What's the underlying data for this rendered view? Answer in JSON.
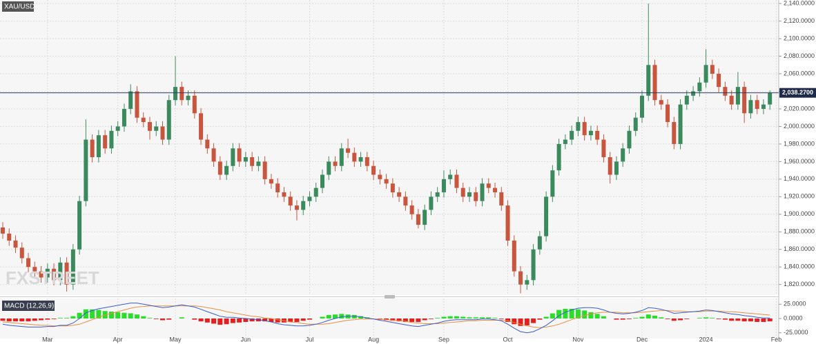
{
  "chart_data": [
    {
      "type": "candlestick",
      "title": "XAU/USD",
      "watermark": "FXSTREET",
      "up_color": "#3b8a5e",
      "down_color": "#c8553d",
      "categories": [
        null,
        null,
        null,
        null,
        null,
        null,
        null,
        "Mar",
        null,
        null,
        null,
        null,
        null,
        null,
        null,
        null,
        null,
        null,
        "Apr",
        null,
        null,
        null,
        null,
        null,
        null,
        null,
        null,
        "May",
        null,
        null,
        null,
        null,
        null,
        null,
        null,
        null,
        null,
        null,
        "Jun",
        null,
        null,
        null,
        null,
        null,
        null,
        null,
        null,
        null,
        "Jul",
        null,
        null,
        null,
        null,
        null,
        null,
        null,
        null,
        null,
        "Aug",
        null,
        null,
        null,
        null,
        null,
        null,
        null,
        null,
        null,
        null,
        "Sep",
        null,
        null,
        null,
        null,
        null,
        null,
        null,
        null,
        null,
        "Oct",
        null,
        null,
        null,
        null,
        null,
        null,
        null,
        null,
        null,
        null,
        "Nov",
        null,
        null,
        null,
        null,
        null,
        null,
        null,
        null,
        null,
        "Dec",
        null,
        null,
        null,
        null,
        null,
        null,
        null,
        null,
        null,
        "2024",
        null,
        null,
        null,
        null,
        null,
        null,
        null,
        null,
        null,
        null,
        "Feb"
      ],
      "open": [
        1885,
        1878,
        1870,
        1862,
        1850,
        1840,
        1835,
        1828,
        1838,
        1825,
        1845,
        1820,
        1860,
        1915,
        1985,
        1965,
        1990,
        1975,
        1995,
        2000,
        2020,
        2040,
        2010,
        2005,
        1995,
        2000,
        1985,
        2030,
        2045,
        2030,
        2035,
        2015,
        1985,
        1975,
        1960,
        1945,
        1955,
        1975,
        1960,
        1965,
        1955,
        1960,
        1940,
        1935,
        1925,
        1920,
        1910,
        1905,
        1915,
        1920,
        1930,
        1945,
        1960,
        1955,
        1975,
        1970,
        1960,
        1965,
        1955,
        1945,
        1940,
        1935,
        1925,
        1920,
        1910,
        1900,
        1888,
        1905,
        1920,
        1925,
        1940,
        1945,
        1930,
        1920,
        1925,
        1915,
        1935,
        1930,
        1925,
        1910,
        1870,
        1835,
        1820,
        1825,
        1860,
        1875,
        1920,
        1950,
        1980,
        1985,
        1995,
        2005,
        1990,
        1995,
        1985,
        1965,
        1945,
        1960,
        1975,
        1995,
        2010,
        2035,
        2070,
        2030,
        2025,
        2005,
        1980,
        2025,
        2035,
        2040,
        2050,
        2070,
        2060,
        2045,
        2035,
        2025,
        2045,
        2015,
        2030,
        2020,
        2025,
        null
      ],
      "high": [
        1891,
        1884,
        1876,
        1868,
        1856,
        1846,
        1841,
        1844,
        1844,
        1851,
        1851,
        1866,
        1921,
        2008,
        1991,
        1996,
        1996,
        2001,
        2006,
        2026,
        2048,
        2046,
        2016,
        2011,
        2006,
        2006,
        2036,
        2080,
        2051,
        2041,
        2041,
        2021,
        1991,
        1981,
        1966,
        1961,
        1981,
        1981,
        1971,
        1971,
        1966,
        1966,
        1946,
        1941,
        1931,
        1926,
        1916,
        1921,
        1926,
        1936,
        1951,
        1966,
        1966,
        1981,
        1986,
        1976,
        1971,
        1971,
        1961,
        1951,
        1946,
        1941,
        1931,
        1926,
        1916,
        1906,
        1911,
        1926,
        1931,
        1950,
        1951,
        1951,
        1936,
        1931,
        1931,
        1941,
        1941,
        1936,
        1931,
        1916,
        1876,
        1841,
        1831,
        1866,
        1881,
        1926,
        1956,
        1986,
        1991,
        2001,
        2011,
        2011,
        2001,
        2001,
        1991,
        1971,
        1966,
        1981,
        2001,
        2016,
        2041,
        2140,
        2076,
        2036,
        2031,
        2011,
        2031,
        2041,
        2046,
        2056,
        2088,
        2076,
        2066,
        2051,
        2041,
        2062,
        2051,
        2036,
        2036,
        2031,
        2041,
        null
      ],
      "low": [
        1872,
        1864,
        1856,
        1844,
        1834,
        1829,
        1822,
        1822,
        1819,
        1819,
        1812,
        1814,
        1854,
        1909,
        1959,
        1959,
        1969,
        1969,
        1989,
        1994,
        2014,
        2004,
        1999,
        1985,
        1989,
        1979,
        1979,
        2024,
        2024,
        2024,
        2009,
        1979,
        1969,
        1954,
        1939,
        1939,
        1949,
        1954,
        1954,
        1949,
        1949,
        1934,
        1929,
        1919,
        1914,
        1904,
        1893,
        1899,
        1909,
        1914,
        1924,
        1939,
        1949,
        1949,
        1964,
        1954,
        1954,
        1949,
        1939,
        1934,
        1929,
        1919,
        1914,
        1904,
        1894,
        1884,
        1882,
        1899,
        1914,
        1919,
        1934,
        1924,
        1914,
        1914,
        1909,
        1909,
        1924,
        1919,
        1904,
        1864,
        1829,
        1810,
        1814,
        1819,
        1854,
        1869,
        1914,
        1944,
        1974,
        1979,
        1989,
        1984,
        1984,
        1979,
        1959,
        1935,
        1939,
        1954,
        1969,
        1989,
        2004,
        2029,
        2024,
        2019,
        1999,
        1974,
        1974,
        2019,
        2029,
        2034,
        2044,
        2054,
        2039,
        2029,
        2019,
        2019,
        2004,
        2009,
        2014,
        2014,
        2019,
        null
      ],
      "close": [
        1878,
        1870,
        1862,
        1850,
        1840,
        1835,
        1828,
        1838,
        1825,
        1845,
        1820,
        1860,
        1915,
        1985,
        1965,
        1990,
        1975,
        1995,
        2000,
        2020,
        2040,
        2010,
        2005,
        1995,
        2000,
        1985,
        2030,
        2045,
        2030,
        2035,
        2015,
        1985,
        1975,
        1960,
        1945,
        1955,
        1975,
        1960,
        1965,
        1955,
        1960,
        1940,
        1935,
        1925,
        1920,
        1910,
        1905,
        1915,
        1920,
        1930,
        1945,
        1960,
        1955,
        1975,
        1970,
        1960,
        1965,
        1955,
        1945,
        1940,
        1935,
        1925,
        1920,
        1910,
        1900,
        1888,
        1905,
        1920,
        1925,
        1940,
        1945,
        1930,
        1920,
        1925,
        1915,
        1935,
        1930,
        1925,
        1910,
        1870,
        1835,
        1820,
        1825,
        1860,
        1875,
        1920,
        1950,
        1980,
        1985,
        1995,
        2005,
        1990,
        1995,
        1985,
        1965,
        1945,
        1960,
        1975,
        1995,
        2010,
        2035,
        2070,
        2030,
        2025,
        2005,
        1980,
        2025,
        2035,
        2040,
        2050,
        2070,
        2060,
        2045,
        2035,
        2025,
        2045,
        2015,
        2030,
        2020,
        2025,
        2038.27,
        null
      ],
      "last_price": {
        "value": 2038.27,
        "label": "2,038.2700"
      },
      "ylim": [
        1808,
        2144
      ],
      "yticks": [
        {
          "value": 1820,
          "label": "1,820.0000"
        },
        {
          "value": 1840,
          "label": "1,840.0000"
        },
        {
          "value": 1860,
          "label": "1,860.0000"
        },
        {
          "value": 1880,
          "label": "1,880.0000"
        },
        {
          "value": 1900,
          "label": "1,900.0000"
        },
        {
          "value": 1920,
          "label": "1,920.0000"
        },
        {
          "value": 1940,
          "label": "1,940.0000"
        },
        {
          "value": 1960,
          "label": "1,960.0000"
        },
        {
          "value": 1980,
          "label": "1,980.0000"
        },
        {
          "value": 2000,
          "label": "2,000.0000"
        },
        {
          "value": 2020,
          "label": "2,020.0000"
        },
        {
          "value": 2040,
          "label": "2,040.0000"
        },
        {
          "value": 2060,
          "label": "2,060.0000"
        },
        {
          "value": 2080,
          "label": "2,080.0000"
        },
        {
          "value": 2100,
          "label": "2,100.0000"
        },
        {
          "value": 2120,
          "label": "2,120.0000"
        },
        {
          "value": 2140,
          "label": "2,140.0000"
        }
      ],
      "grid": true
    },
    {
      "type": "macd",
      "title": "MACD (12,26,9)",
      "macd_color": "#3a5bd0",
      "signal_color": "#e8903c",
      "up_color": "#2bdc2b",
      "down_color": "#e41f1f",
      "macd": [
        -10,
        -12,
        -13,
        -14,
        -15,
        -15,
        -15,
        -14,
        -14,
        -12,
        -12,
        -8,
        0,
        10,
        14,
        17,
        19,
        21,
        23,
        25,
        27,
        27,
        25,
        23,
        21,
        19,
        20,
        22,
        24,
        22,
        20,
        16,
        12,
        8,
        4,
        2,
        2,
        1,
        0,
        -1,
        -2,
        -4,
        -6,
        -9,
        -11,
        -12,
        -13,
        -13,
        -12,
        -10,
        -7,
        -3,
        0,
        3,
        4,
        4,
        3,
        1,
        -1,
        -3,
        -5,
        -7,
        -9,
        -11,
        -13,
        -14,
        -12,
        -10,
        -8,
        -5,
        -3,
        -2,
        -2,
        -2,
        -2,
        -1,
        -1,
        -2,
        -4,
        -10,
        -17,
        -23,
        -25,
        -23,
        -18,
        -12,
        -4,
        5,
        11,
        15,
        18,
        19,
        19,
        18,
        15,
        11,
        9,
        8,
        9,
        11,
        14,
        19,
        18,
        16,
        13,
        9,
        10,
        11,
        12,
        13,
        15,
        14,
        12,
        10,
        8,
        7,
        5,
        4,
        2,
        1,
        1,
        null
      ],
      "signal": [
        -6,
        -7,
        -8,
        -9,
        -10,
        -11,
        -12,
        -12,
        -13,
        -13,
        -13,
        -12,
        -10,
        -6,
        -2,
        2,
        6,
        9,
        12,
        15,
        18,
        20,
        21,
        22,
        22,
        22,
        22,
        22,
        22,
        22,
        22,
        21,
        19,
        17,
        15,
        12,
        10,
        8,
        6,
        4,
        3,
        1,
        0,
        -2,
        -4,
        -6,
        -7,
        -9,
        -10,
        -10,
        -10,
        -9,
        -7,
        -5,
        -3,
        -2,
        -1,
        -1,
        -1,
        -1,
        -2,
        -3,
        -4,
        -5,
        -7,
        -8,
        -9,
        -9,
        -9,
        -8,
        -7,
        -6,
        -5,
        -4,
        -4,
        -3,
        -3,
        -3,
        -3,
        -4,
        -7,
        -10,
        -13,
        -15,
        -16,
        -15,
        -13,
        -10,
        -6,
        -2,
        2,
        5,
        8,
        10,
        11,
        11,
        11,
        10,
        10,
        10,
        11,
        12,
        13,
        14,
        14,
        13,
        13,
        12,
        12,
        12,
        13,
        13,
        13,
        12,
        12,
        11,
        10,
        9,
        8,
        7,
        6,
        null
      ],
      "histogram": [
        -4,
        -5,
        -5,
        -5,
        -5,
        -4,
        -3,
        -2,
        -1,
        1,
        1,
        4,
        10,
        16,
        16,
        15,
        13,
        12,
        11,
        10,
        9,
        7,
        4,
        1,
        -1,
        -3,
        -2,
        0,
        2,
        0,
        -2,
        -5,
        -7,
        -9,
        -11,
        -10,
        -8,
        -7,
        -6,
        -5,
        -5,
        -5,
        -6,
        -7,
        -7,
        -6,
        -6,
        -4,
        -2,
        0,
        3,
        6,
        7,
        8,
        7,
        6,
        4,
        2,
        0,
        -2,
        -3,
        -4,
        -5,
        -6,
        -6,
        -6,
        -3,
        -1,
        1,
        3,
        4,
        4,
        3,
        2,
        2,
        2,
        2,
        1,
        -1,
        -6,
        -10,
        -13,
        -12,
        -8,
        -2,
        3,
        9,
        15,
        17,
        17,
        16,
        14,
        11,
        8,
        4,
        0,
        -2,
        -2,
        -1,
        1,
        3,
        7,
        5,
        2,
        -1,
        -4,
        -3,
        -1,
        0,
        1,
        2,
        1,
        -1,
        -2,
        -4,
        -4,
        -5,
        -5,
        -6,
        -6,
        -5,
        null
      ],
      "ylim": [
        -35,
        35
      ],
      "yticks": [
        {
          "value": 25,
          "label": "25.0000"
        },
        {
          "value": 0,
          "label": "0.0000"
        },
        {
          "value": -25,
          "label": "-25.0000"
        }
      ]
    }
  ]
}
